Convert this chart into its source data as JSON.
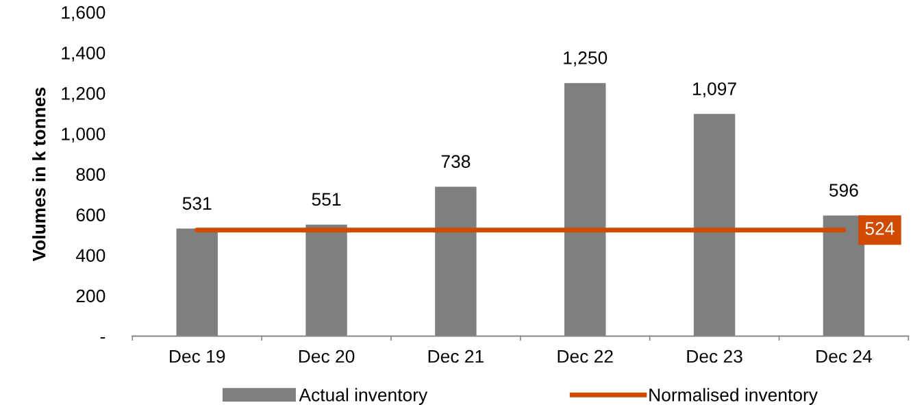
{
  "chart_data": {
    "type": "bar",
    "ylabel": "Volumes in k tonnes",
    "categories": [
      "Dec 19",
      "Dec 20",
      "Dec 21",
      "Dec 22",
      "Dec 23",
      "Dec 24"
    ],
    "series": [
      {
        "name": "Actual inventory",
        "color": "#7f7f7f",
        "values": [
          531,
          551,
          738,
          1250,
          1097,
          596
        ],
        "value_labels": [
          "531",
          "551",
          "738",
          "1,250",
          "1,097",
          "596"
        ]
      },
      {
        "name": "Normalised inventory",
        "type": "line",
        "color": "#d04a02",
        "values": [
          524,
          524,
          524,
          524,
          524,
          524
        ],
        "value_labels": [
          null,
          null,
          null,
          null,
          null,
          "524"
        ]
      }
    ],
    "ylim": [
      0,
      1600
    ],
    "yticks": [
      {
        "value": 0,
        "label": "-"
      },
      {
        "value": 200,
        "label": "200"
      },
      {
        "value": 400,
        "label": "400"
      },
      {
        "value": 600,
        "label": "600"
      },
      {
        "value": 800,
        "label": "800"
      },
      {
        "value": 1000,
        "label": "1,000"
      },
      {
        "value": 1200,
        "label": "1,200"
      },
      {
        "value": 1400,
        "label": "1,400"
      },
      {
        "value": 1600,
        "label": "1,600"
      }
    ],
    "grid": false,
    "legend": "bottom",
    "marker": "none",
    "line_style": "solid"
  }
}
